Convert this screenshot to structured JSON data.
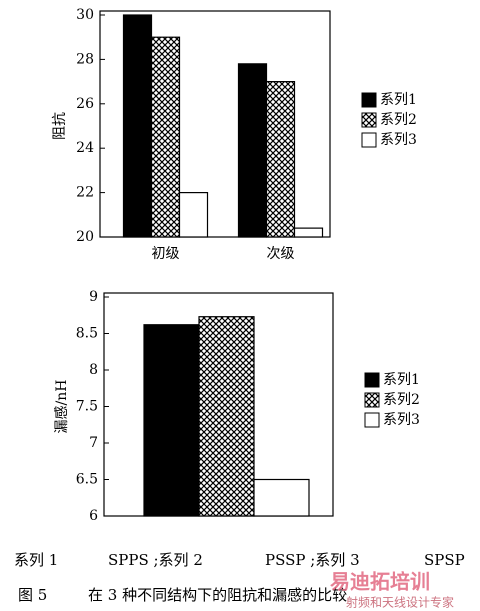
{
  "chart_data": [
    {
      "type": "bar",
      "y_label": "阻抗",
      "categories": [
        "初级",
        "次级"
      ],
      "series": [
        {
          "name": "系列1",
          "color": "#000000",
          "values": [
            30,
            27.8
          ]
        },
        {
          "name": "系列2",
          "color": "#888888",
          "pattern": "crosshatch",
          "values": [
            29,
            27
          ]
        },
        {
          "name": "系列3",
          "color": "#ffffff",
          "values": [
            22,
            20.4
          ]
        }
      ],
      "ylim": [
        20,
        30
      ],
      "yticks": [
        20,
        22,
        24,
        26,
        28,
        30
      ],
      "legend": "right"
    },
    {
      "type": "bar",
      "y_label": "漏感/nH",
      "categories": [
        null
      ],
      "series": [
        {
          "name": "系列1",
          "color": "#000000",
          "values": [
            8.62
          ]
        },
        {
          "name": "系列2",
          "color": "#888888",
          "pattern": "crosshatch",
          "values": [
            8.73
          ]
        },
        {
          "name": "系列3",
          "color": "#ffffff",
          "values": [
            6.5
          ]
        }
      ],
      "ylim": [
        6,
        9
      ],
      "yticks": [
        6,
        6.5,
        7,
        7.5,
        8,
        8.5,
        9
      ],
      "legend": "right"
    }
  ],
  "notes": [
    "系列 1",
    "SPPS ;系列 2",
    "PSSP ;系列 3",
    "SPSP"
  ],
  "caption": {
    "label": "图 5",
    "text": "在 3 种不同结构下的阻抗和漏感的比较"
  },
  "watermark": [
    "易迪拓培训",
    "射频和天线设计专家"
  ]
}
